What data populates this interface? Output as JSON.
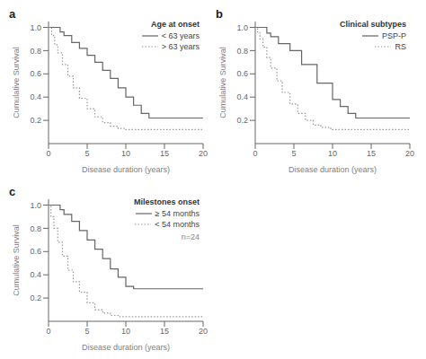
{
  "chart_data": [
    {
      "type": "step",
      "label": "a",
      "title": "Age at onset",
      "x_label": "Disease duration (years)",
      "y_label": "Cumulative Survival",
      "xlim": [
        0,
        20
      ],
      "xticks": [
        0,
        5,
        10,
        15,
        20
      ],
      "ylim": [
        0.0,
        1.05
      ],
      "yticks": [
        0.2,
        0.4,
        0.6,
        0.8,
        {
          "value": 1.0,
          "label": "1.0"
        }
      ],
      "grid": false,
      "legend": "upper right",
      "series": [
        {
          "name": "< 63 years",
          "color": "#666666",
          "line_style": "solid",
          "x": [
            0,
            1.0,
            1.5,
            2.0,
            3.0,
            4.0,
            5.0,
            6.0,
            7.0,
            8.0,
            9.0,
            10.0,
            11.0,
            12.0,
            13.0,
            20.0
          ],
          "values": [
            1.0,
            1.0,
            0.96,
            0.93,
            0.87,
            0.82,
            0.76,
            0.7,
            0.63,
            0.56,
            0.48,
            0.4,
            0.33,
            0.26,
            0.22,
            0.22
          ]
        },
        {
          "name": "> 63 years",
          "color": "#999999",
          "line_style": "dotted",
          "x": [
            0,
            0.4,
            0.8,
            1.2,
            1.8,
            2.5,
            3.2,
            4.0,
            5.0,
            6.0,
            7.0,
            8.0,
            9.0,
            10.0,
            20.0
          ],
          "values": [
            1.0,
            0.93,
            0.85,
            0.78,
            0.68,
            0.58,
            0.48,
            0.39,
            0.3,
            0.23,
            0.18,
            0.15,
            0.13,
            0.12,
            0.12
          ]
        }
      ]
    },
    {
      "type": "step",
      "label": "b",
      "title": "Clinical subtypes",
      "x_label": "Disease duration (years)",
      "y_label": "Cumulative Survival",
      "xlim": [
        0,
        20
      ],
      "xticks": [
        0,
        5,
        10,
        15,
        20
      ],
      "ylim": [
        0.0,
        1.05
      ],
      "yticks": [
        0.2,
        0.4,
        0.6,
        0.8,
        {
          "value": 1.0,
          "label": "1.0"
        }
      ],
      "grid": false,
      "legend": "upper right",
      "series": [
        {
          "name": "PSP-P",
          "color": "#666666",
          "line_style": "solid",
          "x": [
            0,
            1.0,
            1.5,
            2.0,
            3.0,
            4.5,
            6.0,
            8.0,
            10.0,
            11.0,
            12.0,
            13.0,
            20.0
          ],
          "values": [
            1.0,
            1.0,
            0.95,
            0.92,
            0.86,
            0.8,
            0.68,
            0.52,
            0.38,
            0.32,
            0.26,
            0.22,
            0.22
          ]
        },
        {
          "name": "RS",
          "color": "#999999",
          "line_style": "dotted",
          "x": [
            0,
            0.3,
            0.6,
            1.0,
            1.5,
            2.0,
            2.8,
            3.5,
            4.5,
            5.5,
            6.5,
            7.5,
            8.5,
            9.5,
            10.0,
            20.0
          ],
          "values": [
            1.0,
            0.96,
            0.9,
            0.83,
            0.74,
            0.65,
            0.54,
            0.44,
            0.34,
            0.26,
            0.2,
            0.16,
            0.14,
            0.13,
            0.12,
            0.12
          ]
        }
      ]
    },
    {
      "type": "step",
      "label": "c",
      "title": "Milestones onset",
      "x_label": "Disease duration (years)",
      "y_label": "Cumulative Survival",
      "xlim": [
        0,
        20
      ],
      "xticks": [
        0,
        5,
        10,
        15,
        20
      ],
      "ylim": [
        0.0,
        1.05
      ],
      "yticks": [
        0.2,
        0.4,
        0.6,
        0.8,
        {
          "value": 1.0,
          "label": "1.0"
        }
      ],
      "grid": false,
      "legend": "upper right",
      "annotations": [
        "n=24"
      ],
      "series": [
        {
          "name": "≥ 54 months",
          "color": "#666666",
          "line_style": "solid",
          "x": [
            0,
            0.8,
            1.5,
            2.0,
            3.0,
            4.0,
            5.0,
            6.0,
            7.0,
            8.0,
            9.0,
            10.0,
            11.0,
            20.0
          ],
          "values": [
            1.0,
            1.0,
            0.96,
            0.92,
            0.86,
            0.78,
            0.7,
            0.62,
            0.54,
            0.45,
            0.38,
            0.3,
            0.28,
            0.28
          ]
        },
        {
          "name": "< 54 months",
          "color": "#999999",
          "line_style": "dotted",
          "x": [
            0,
            0.3,
            0.7,
            1.2,
            1.8,
            2.5,
            3.2,
            4.0,
            5.0,
            6.0,
            7.0,
            8.0,
            9.0,
            10.0,
            20.0
          ],
          "values": [
            1.0,
            0.9,
            0.8,
            0.68,
            0.56,
            0.44,
            0.34,
            0.25,
            0.16,
            0.1,
            0.07,
            0.05,
            0.04,
            0.04,
            0.04
          ]
        }
      ]
    }
  ]
}
